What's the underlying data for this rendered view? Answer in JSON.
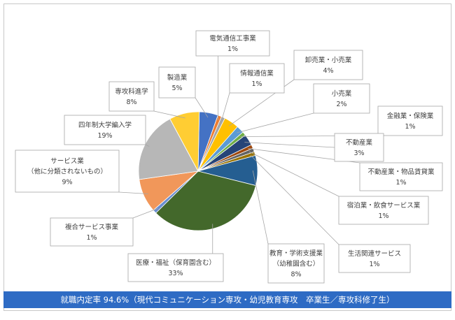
{
  "chart_data": {
    "type": "pie",
    "title": "",
    "slices": [
      {
        "label": "製造業",
        "value": 5,
        "value_label": "5%",
        "color": "#4472c4"
      },
      {
        "label": "電気通信工事業",
        "value": 1,
        "value_label": "1%",
        "color": "#ed7d31"
      },
      {
        "label": "情報通信業",
        "value": 1,
        "value_label": "1%",
        "color": "#a5a5a5"
      },
      {
        "label": "卸売業・小売業",
        "value": 4,
        "value_label": "4%",
        "color": "#ffc000"
      },
      {
        "label": "小売業",
        "value": 2,
        "value_label": "2%",
        "color": "#5b9bd5"
      },
      {
        "label": "金融業・保険業",
        "value": 1,
        "value_label": "1%",
        "color": "#70ad47"
      },
      {
        "label": "不動産業",
        "value": 3,
        "value_label": "3%",
        "color": "#264478"
      },
      {
        "label": "不動産業・物品賃貸業",
        "value": 1,
        "value_label": "1%",
        "color": "#9e480e"
      },
      {
        "label": "宿泊業・飲食サービス業",
        "value": 1,
        "value_label": "1%",
        "color": "#636363"
      },
      {
        "label": "生活関連サービス",
        "value": 1,
        "value_label": "1%",
        "color": "#997300"
      },
      {
        "label": "教育・学術支援業\n（幼稚園含む）",
        "value": 8,
        "value_label": "8%",
        "color": "#255e91"
      },
      {
        "label": "医療・福祉（保育園含む）",
        "value": 33,
        "value_label": "33%",
        "color": "#43682b"
      },
      {
        "label": "複合サービス事業",
        "value": 1,
        "value_label": "1%",
        "color": "#698ed0"
      },
      {
        "label": "サービス業\n（他に分類されないもの）",
        "value": 9,
        "value_label": "9%",
        "color": "#f1975a"
      },
      {
        "label": "四年制大学編入学",
        "value": 19,
        "value_label": "19%",
        "color": "#b7b7b7"
      },
      {
        "label": "専攻科進学",
        "value": 8,
        "value_label": "8%",
        "color": "#ffcd33"
      }
    ]
  },
  "footer": {
    "text": "就職内定率 94.6%（現代コミュニケーション専攻・幼児教育専攻　卒業生／専攻科修了生）",
    "background": "#2e6bc4"
  }
}
